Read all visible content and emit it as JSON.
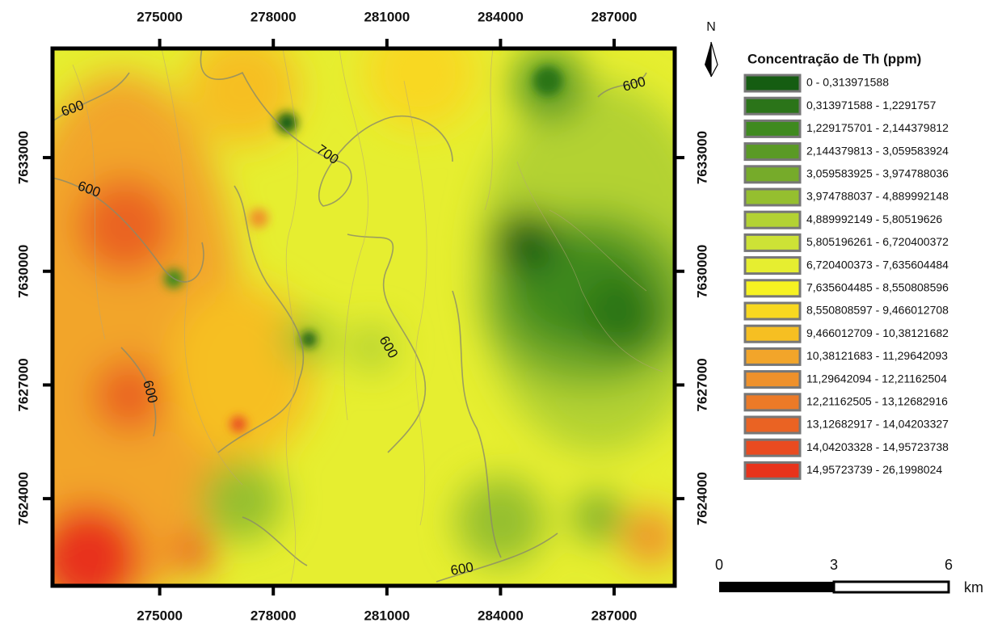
{
  "map_data": {
    "title": "Concentração de Th (ppm)",
    "xlim": [
      272170,
      288600
    ],
    "ylim": [
      7621700,
      7635880
    ],
    "xticks": [
      275000,
      278000,
      281000,
      284000,
      287000
    ],
    "yticks": [
      7624000,
      7627000,
      7630000,
      7633000
    ],
    "contour_labels": [
      "600",
      "600",
      "700",
      "600",
      "600",
      "600",
      "600"
    ],
    "north": "N",
    "legend": [
      {
        "label": "0 - 0,313971588",
        "color": "#155d12"
      },
      {
        "label": "0,313971588 - 1,2291757",
        "color": "#2b7419"
      },
      {
        "label": "1,229175701 - 2,144379812",
        "color": "#3f8a1f"
      },
      {
        "label": "2,144379813 - 3,059583924",
        "color": "#5a9a25"
      },
      {
        "label": "3,059583925 - 3,974788036",
        "color": "#76ab2a"
      },
      {
        "label": "3,974788037 - 4,889992148",
        "color": "#95bf2f"
      },
      {
        "label": "4,889992149 - 5,80519626",
        "color": "#b3d233"
      },
      {
        "label": "5,805196261 - 6,720400372",
        "color": "#cde236"
      },
      {
        "label": "6,720400373 - 7,635604484",
        "color": "#e6ee30"
      },
      {
        "label": "7,635604485 - 8,550808596",
        "color": "#f6f222"
      },
      {
        "label": "8,550808597 - 9,466012708",
        "color": "#f8d820"
      },
      {
        "label": "9,466012709 - 10,38121682",
        "color": "#f6bf22"
      },
      {
        "label": "10,38121683 - 11,29642093",
        "color": "#f2a52a"
      },
      {
        "label": "11,29642094 - 12,21162504",
        "color": "#ef912b"
      },
      {
        "label": "12,21162505 - 13,12682916",
        "color": "#ec7a27"
      },
      {
        "label": "13,12682917 - 14,04203327",
        "color": "#ea6323"
      },
      {
        "label": "14,04203328 - 14,95723738",
        "color": "#e94b20"
      },
      {
        "label": "14,95723739 - 26,1998024",
        "color": "#e8331b"
      }
    ],
    "scale_bar": {
      "labels": [
        "0",
        "3",
        "6"
      ],
      "unit": "km"
    }
  }
}
